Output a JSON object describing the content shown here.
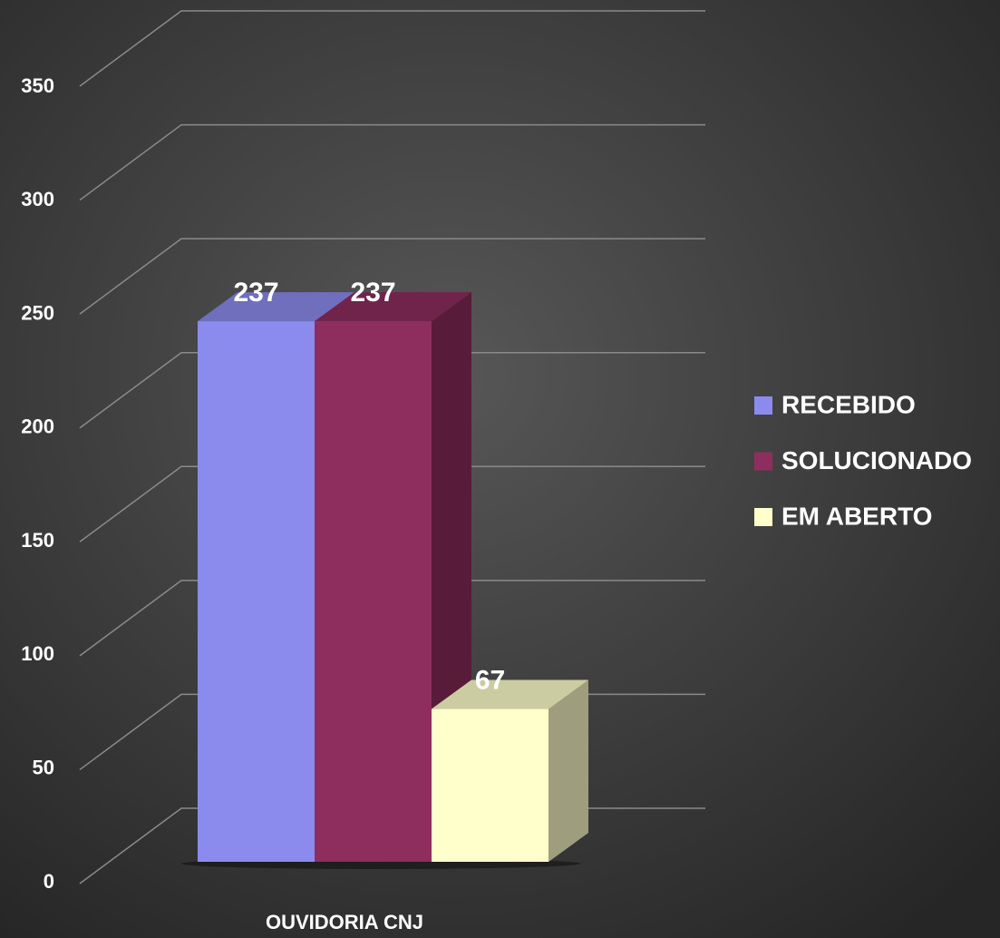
{
  "chart_data": {
    "type": "bar3d",
    "categories": [
      "OUVIDORIA CNJ"
    ],
    "series": [
      {
        "name": "RECEBIDO",
        "color": "#8b8bee",
        "values": [
          237
        ]
      },
      {
        "name": "SOLUCIONADO",
        "color": "#8e2e5e",
        "values": [
          237
        ]
      },
      {
        "name": "EM ABERTO",
        "color": "#ffffcc",
        "values": [
          67
        ]
      }
    ],
    "ylim": [
      0,
      350
    ],
    "yticks": [
      0,
      50,
      100,
      150,
      200,
      250,
      300,
      350
    ],
    "grid": true,
    "legend": "right"
  }
}
